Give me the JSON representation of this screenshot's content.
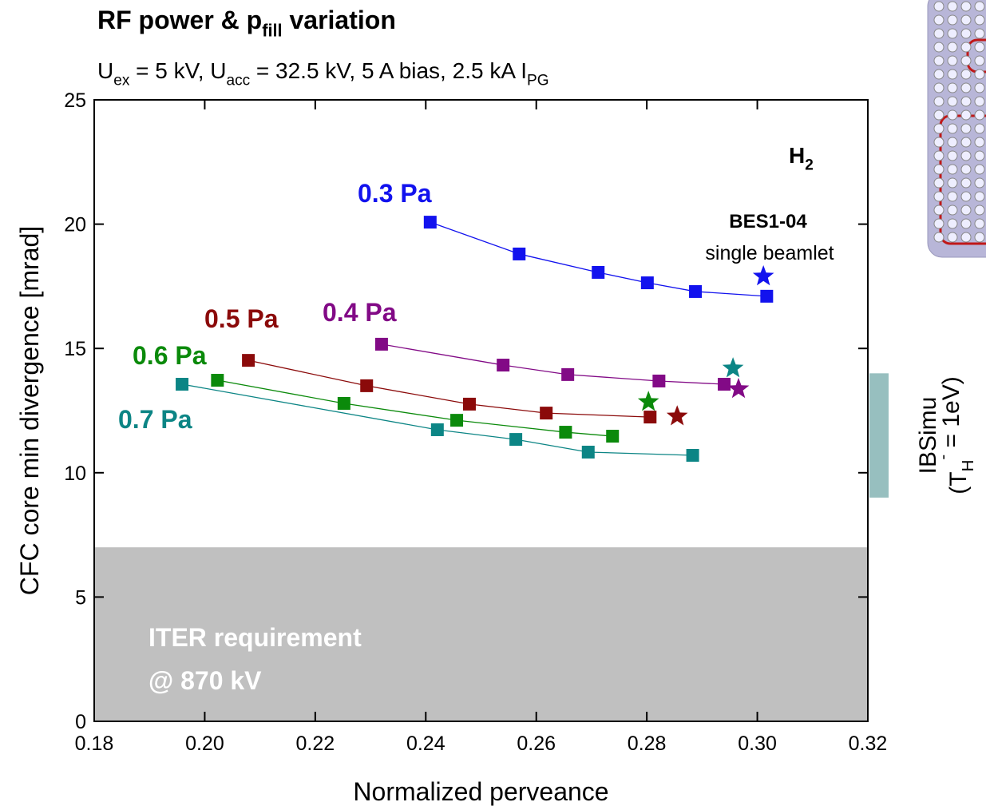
{
  "chart_data": {
    "type": "line",
    "title": [
      {
        "text": "RF power & p"
      },
      {
        "text": "fill",
        "sub": true
      },
      {
        "text": " variation"
      }
    ],
    "subtitle": [
      {
        "text": "U"
      },
      {
        "text": "ex",
        "sub": true
      },
      {
        "text": " = 5 kV, U"
      },
      {
        "text": "acc",
        "sub": true
      },
      {
        "text": " = 32.5 kV, 5 A bias, 2.5 kA I"
      },
      {
        "text": "PG",
        "sub": true
      }
    ],
    "x_label": "Normalized perveance",
    "y_label": "CFC core min divergence [mrad]",
    "xlim": [
      0.18,
      0.32
    ],
    "ylim": [
      0,
      25
    ],
    "xticks": [
      0.18,
      {
        "value": 0.2,
        "label": "0.20"
      },
      0.22,
      0.24,
      0.26,
      0.28,
      {
        "value": 0.3,
        "label": "0.30"
      },
      0.32
    ],
    "yticks": [
      0,
      5,
      10,
      15,
      20,
      25
    ],
    "species": [
      {
        "text": "H"
      },
      {
        "text": "2",
        "sub": true
      }
    ],
    "beamlet_note": [
      "BES1-04",
      "single beamlet"
    ],
    "series": [
      {
        "name": "0.3 Pa",
        "color": "#1212ee",
        "x": [
          0.2408,
          0.2569,
          0.2712,
          0.2801,
          0.2888,
          0.3017
        ],
        "values": [
          20.08,
          18.8,
          18.06,
          17.64,
          17.29,
          17.1
        ],
        "beamlet_x": 0.3011,
        "beamlet_y": 17.9
      },
      {
        "name": "0.4 Pa",
        "color": "#820a86",
        "x": [
          0.232,
          0.254,
          0.2657,
          0.2822,
          0.294
        ],
        "values": [
          15.17,
          14.33,
          13.95,
          13.69,
          13.56
        ],
        "beamlet_x": 0.2966,
        "beamlet_y": 13.37
      },
      {
        "name": "0.5 Pa",
        "color": "#8b0a0a",
        "x": [
          0.2079,
          0.2293,
          0.2479,
          0.2618,
          0.2806
        ],
        "values": [
          14.52,
          13.5,
          12.76,
          12.4,
          12.24
        ],
        "beamlet_x": 0.2855,
        "beamlet_y": 12.27
      },
      {
        "name": "0.6 Pa",
        "color": "#0b8a0b",
        "x": [
          0.2023,
          0.2252,
          0.2456,
          0.2653,
          0.2738
        ],
        "values": [
          13.72,
          12.79,
          12.11,
          11.63,
          11.47
        ],
        "beamlet_x": 0.2803,
        "beamlet_y": 12.85
      },
      {
        "name": "0.7 Pa",
        "color": "#0c8585",
        "x": [
          0.1959,
          0.2421,
          0.2563,
          0.2694,
          0.2883
        ],
        "values": [
          13.56,
          11.73,
          11.34,
          10.83,
          10.7
        ],
        "beamlet_x": 0.2956,
        "beamlet_y": 14.2
      }
    ],
    "iter_requirement": {
      "ymax": 7,
      "color": "#c0c0c0",
      "lines": [
        "ITER requirement",
        "@ 870 kV"
      ]
    },
    "ibsimu": {
      "range": [
        9,
        14
      ],
      "color": "#97bfbf",
      "label": "IBSimu",
      "note": [
        {
          "text": "(T"
        },
        {
          "text": "H",
          "sub": true
        },
        {
          "text": "-",
          "sup": true
        },
        {
          "text": " = 1eV)"
        }
      ]
    }
  }
}
